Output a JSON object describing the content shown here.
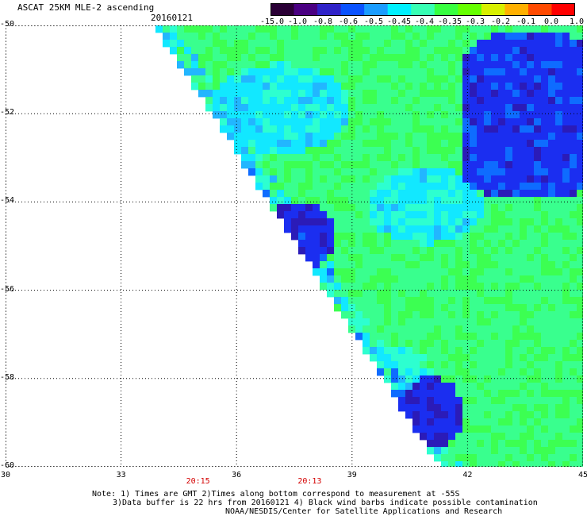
{
  "header": {
    "title": "ASCAT 25KM MLE-2 ascending",
    "date": "20160121"
  },
  "colorbar": {
    "labels": [
      "-15.0",
      "-1.0",
      "-0.8",
      "-0.6",
      "-0.5",
      "-0.45",
      "-0.4",
      "-0.35",
      "-0.3",
      "-0.2",
      "-0.1",
      "0.0",
      "1.0"
    ],
    "colors": [
      "#2a0036",
      "#4a0082",
      "#2f22c8",
      "#0a52ff",
      "#1a9cff",
      "#00f0ff",
      "#38ffb4",
      "#38ff40",
      "#66ff00",
      "#d8f000",
      "#ffb000",
      "#ff4a00",
      "#ff0000"
    ]
  },
  "map": {
    "lat_labels": [
      "-50",
      "-52",
      "-54",
      "-56",
      "-58",
      "-60"
    ],
    "lon_labels": [
      "30",
      "33",
      "36",
      "39",
      "42",
      "45"
    ],
    "lat_range": [
      -50,
      -60
    ],
    "lon_range": [
      30,
      45
    ],
    "time_labels": [
      {
        "text": "20:15",
        "lon": 35
      },
      {
        "text": "20:13",
        "lon": 37.9
      }
    ]
  },
  "footer": {
    "line1": "Note: 1) Times are GMT 2)Times along bottom correspond to measurement at -55S",
    "line2": "3)Data buffer is 22 hrs from 20160121 4) Black wind barbs indicate possible contamination",
    "line3": "NOAA/NESDIS/Center for Satellite Applications and Research"
  }
}
